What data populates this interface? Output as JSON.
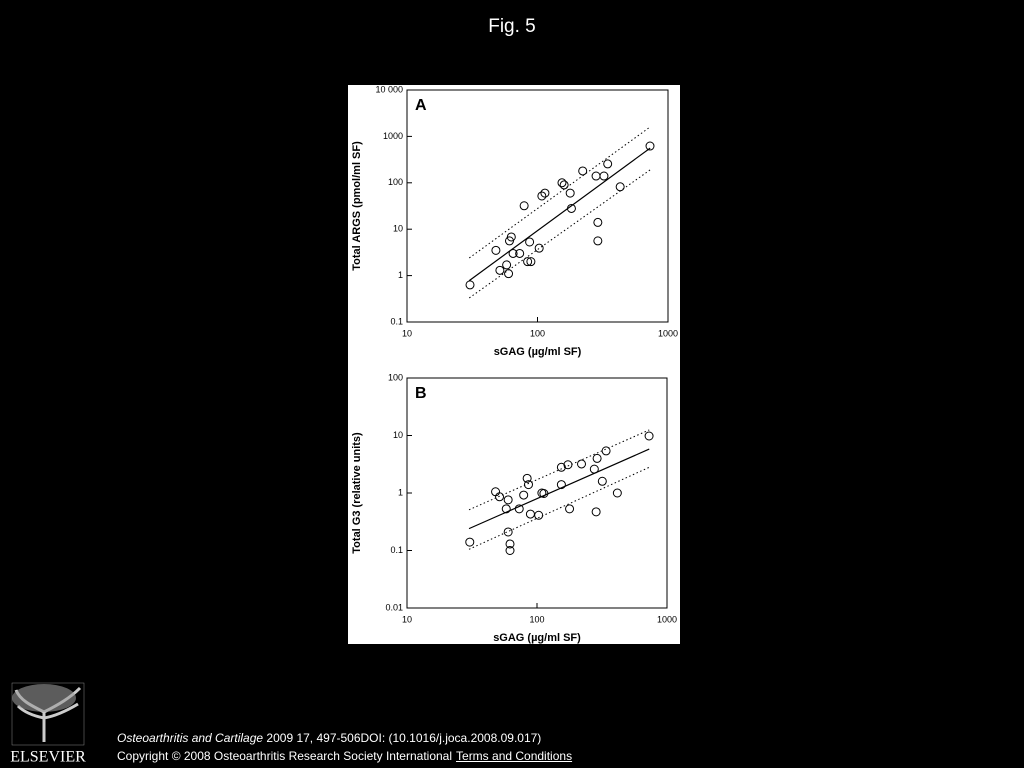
{
  "page": {
    "title": "Fig. 5",
    "citation": {
      "journal": "Osteoarthritis and Cartilage",
      "details": "2009 17, 497-506DOI: (10.1016/j.joca.2008.09.017)"
    },
    "copyright": "Copyright © 2008 Osteoarthritis Research Society International",
    "terms_link": "Terms and Conditions",
    "logo_text": "ELSEVIER"
  },
  "chart_data": [
    {
      "type": "scatter",
      "panel_label": "A",
      "x_label": "sGAG (µg/ml SF)",
      "y_label": "Total ARGS (pmol/ml SF)",
      "xscale": "log",
      "yscale": "log",
      "xlim": [
        10,
        1000
      ],
      "xticks": [
        10,
        100,
        1000
      ],
      "ylim": [
        0.1,
        10000
      ],
      "yticks": [
        0.1,
        1,
        10,
        100,
        1000,
        {
          "value": 10000,
          "label": "10 000"
        }
      ],
      "color": "#000000",
      "x": [
        30.4,
        48,
        51.5,
        58,
        60,
        61,
        63,
        65,
        73,
        79,
        84,
        89,
        87,
        103,
        108,
        114,
        154,
        160,
        178,
        182,
        222,
        281,
        290,
        290,
        323,
        345,
        430,
        728
      ],
      "values": [
        0.63,
        3.5,
        1.3,
        1.7,
        1.1,
        5.6,
        6.8,
        3.0,
        3.0,
        32,
        2.0,
        2.0,
        5.3,
        3.9,
        52,
        60,
        100,
        90,
        60,
        28,
        180,
        140,
        14,
        5.6,
        140,
        255,
        82,
        620
      ],
      "lines": [
        {
          "style": "solid",
          "x": [
            30,
            730
          ],
          "values": [
            0.78,
            560
          ]
        },
        {
          "style": "dotted",
          "x": [
            30,
            730
          ],
          "values": [
            2.4,
            1600
          ]
        },
        {
          "style": "dotted",
          "x": [
            30,
            730
          ],
          "values": [
            0.33,
            190
          ]
        }
      ]
    },
    {
      "type": "scatter",
      "panel_label": "B",
      "x_label": "sGAG (µg/ml SF)",
      "y_label": "Total G3 (relative units)",
      "xscale": "log",
      "yscale": "log",
      "xlim": [
        10,
        1000
      ],
      "xticks": [
        10,
        100,
        1000
      ],
      "ylim": [
        0.01,
        100
      ],
      "yticks": [
        0.01,
        0.1,
        1,
        10,
        100
      ],
      "color": "#000000",
      "x": [
        30.4,
        48,
        51.5,
        58,
        60,
        60,
        62,
        62,
        73,
        79,
        84,
        86,
        89,
        103,
        109,
        113,
        154,
        154,
        173,
        178,
        220,
        276,
        290,
        285,
        318,
        340,
        415,
        728
      ],
      "values": [
        0.14,
        1.05,
        0.86,
        0.53,
        0.76,
        0.21,
        0.13,
        0.1,
        0.53,
        0.92,
        1.8,
        1.4,
        0.43,
        0.41,
        1.0,
        0.98,
        2.8,
        1.4,
        3.1,
        0.53,
        3.2,
        2.6,
        4.0,
        0.47,
        1.6,
        5.4,
        1.0,
        9.8
      ],
      "lines": [
        {
          "style": "solid",
          "x": [
            30,
            730
          ],
          "values": [
            0.24,
            5.8
          ]
        },
        {
          "style": "dotted",
          "x": [
            30,
            730
          ],
          "values": [
            0.51,
            12.5
          ]
        },
        {
          "style": "dotted",
          "x": [
            30,
            730
          ],
          "values": [
            0.105,
            2.8
          ]
        }
      ]
    }
  ]
}
